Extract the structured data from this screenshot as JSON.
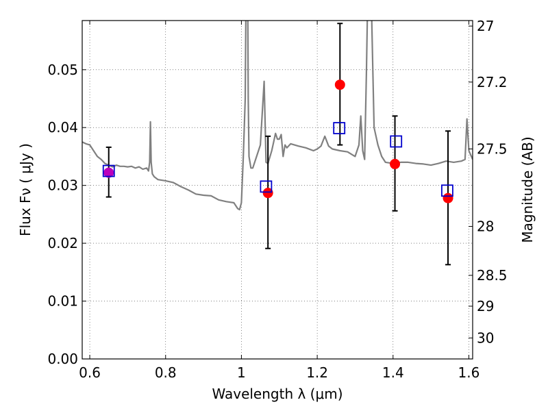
{
  "chart_data": {
    "type": "scatter",
    "title": "",
    "xlabel": "Wavelength  λ (μm)",
    "ylabel": "Flux  Fν  ( μJy )",
    "y2label": "Magnitude (AB)",
    "xlim": [
      0.58,
      1.61
    ],
    "ylim": [
      0.0,
      0.0585
    ],
    "xticks": [
      {
        "value": 0.6,
        "label": "0.6"
      },
      {
        "value": 0.8,
        "label": "0.8"
      },
      {
        "value": 1.0,
        "label": "1"
      },
      {
        "value": 1.2,
        "label": "1.2"
      },
      {
        "value": 1.4,
        "label": "1.4"
      },
      {
        "value": 1.6,
        "label": "1.6"
      }
    ],
    "yticks": [
      {
        "value": 0.0,
        "label": "0.00"
      },
      {
        "value": 0.01,
        "label": "0.01"
      },
      {
        "value": 0.02,
        "label": "0.02"
      },
      {
        "value": 0.03,
        "label": "0.03"
      },
      {
        "value": 0.04,
        "label": "0.04"
      },
      {
        "value": 0.05,
        "label": "0.05"
      }
    ],
    "y2ticks": [
      {
        "value": 27,
        "label": "27"
      },
      {
        "value": 27.2,
        "label": "27.2"
      },
      {
        "value": 27.5,
        "label": "27.5"
      },
      {
        "value": 28,
        "label": "28"
      },
      {
        "value": 28.5,
        "label": "28.5"
      },
      {
        "value": 29,
        "label": "29"
      },
      {
        "value": 30,
        "label": "30"
      }
    ],
    "grid": true,
    "colors": {
      "model": "#808080",
      "observed": "#ff0000",
      "model_photometry": "#0000cc",
      "errorbar": "#000000",
      "overlap": "#bb00bb"
    },
    "series": [
      {
        "name": "model spectrum",
        "kind": "line",
        "x": [
          0.58,
          0.59,
          0.6,
          0.61,
          0.62,
          0.63,
          0.64,
          0.65,
          0.66,
          0.67,
          0.68,
          0.69,
          0.7,
          0.71,
          0.72,
          0.73,
          0.74,
          0.75,
          0.755,
          0.758,
          0.76,
          0.762,
          0.765,
          0.77,
          0.78,
          0.8,
          0.82,
          0.84,
          0.86,
          0.88,
          0.9,
          0.92,
          0.94,
          0.96,
          0.98,
          0.99,
          0.995,
          1.0,
          1.005,
          1.01,
          1.013,
          1.016,
          1.018,
          1.02,
          1.025,
          1.03,
          1.04,
          1.05,
          1.06,
          1.065,
          1.07,
          1.08,
          1.085,
          1.09,
          1.095,
          1.1,
          1.105,
          1.11,
          1.115,
          1.12,
          1.13,
          1.15,
          1.17,
          1.19,
          1.2,
          1.21,
          1.22,
          1.23,
          1.24,
          1.26,
          1.28,
          1.3,
          1.31,
          1.315,
          1.32,
          1.325,
          1.33,
          1.335,
          1.34,
          1.35,
          1.36,
          1.37,
          1.38,
          1.4,
          1.42,
          1.44,
          1.46,
          1.48,
          1.5,
          1.52,
          1.54,
          1.56,
          1.58,
          1.59,
          1.595,
          1.6,
          1.61
        ],
        "y": [
          0.0375,
          0.0372,
          0.037,
          0.036,
          0.035,
          0.0345,
          0.0338,
          0.0335,
          0.0332,
          0.0335,
          0.0333,
          0.0333,
          0.0332,
          0.0333,
          0.033,
          0.0332,
          0.0328,
          0.033,
          0.0325,
          0.034,
          0.041,
          0.034,
          0.032,
          0.0315,
          0.031,
          0.0308,
          0.0305,
          0.0298,
          0.0292,
          0.0285,
          0.0283,
          0.0282,
          0.0275,
          0.0272,
          0.027,
          0.026,
          0.0258,
          0.027,
          0.035,
          0.045,
          0.07,
          0.07,
          0.045,
          0.035,
          0.033,
          0.033,
          0.035,
          0.037,
          0.048,
          0.034,
          0.0338,
          0.036,
          0.0375,
          0.039,
          0.038,
          0.038,
          0.0388,
          0.035,
          0.037,
          0.0365,
          0.0372,
          0.0368,
          0.0365,
          0.036,
          0.0363,
          0.0368,
          0.0385,
          0.0368,
          0.0363,
          0.036,
          0.0358,
          0.035,
          0.037,
          0.042,
          0.036,
          0.0345,
          0.05,
          0.07,
          0.07,
          0.04,
          0.037,
          0.035,
          0.034,
          0.0338,
          0.034,
          0.034,
          0.0338,
          0.0337,
          0.0335,
          0.0338,
          0.0342,
          0.034,
          0.0342,
          0.0345,
          0.0415,
          0.036,
          0.0345
        ]
      },
      {
        "name": "observed flux",
        "kind": "points",
        "x": [
          0.65,
          1.07,
          1.26,
          1.405,
          1.545
        ],
        "y": [
          0.0322,
          0.0287,
          0.0474,
          0.0337,
          0.0278
        ],
        "yerr_low": [
          0.0042,
          0.0096,
          0.0104,
          0.0081,
          0.0115
        ],
        "yerr_high": [
          0.0044,
          0.0098,
          0.0106,
          0.0083,
          0.0116
        ]
      },
      {
        "name": "model photometry",
        "kind": "squares",
        "x": [
          0.65,
          1.065,
          1.258,
          1.408,
          1.543
        ],
        "y": [
          0.0325,
          0.0298,
          0.0399,
          0.0376,
          0.0291
        ]
      }
    ]
  }
}
